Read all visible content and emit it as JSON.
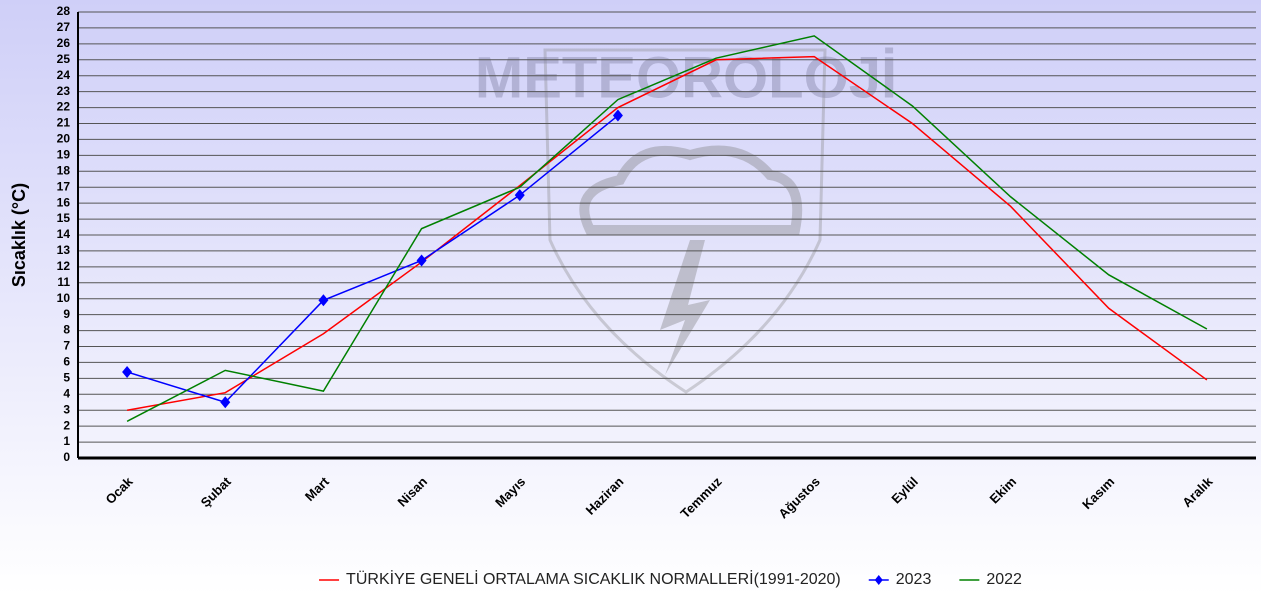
{
  "chart_data": {
    "type": "line",
    "watermark": "METEOROLOJİ",
    "ylabel": "Sıcaklık (°C)",
    "categories": [
      "Ocak",
      "Şubat",
      "Mart",
      "Nisan",
      "Mayıs",
      "Haziran",
      "Temmuz",
      "Ağustos",
      "Eylül",
      "Ekim",
      "Kasım",
      "Aralık"
    ],
    "series": [
      {
        "name": "TÜRKİYE GENELİ ORTALAMA SICAKLIK NORMALLERİ(1991-2020)",
        "color": "#ff0000",
        "marker": false,
        "values": [
          3.0,
          4.1,
          7.8,
          12.3,
          17.1,
          22.0,
          25.0,
          25.2,
          21.0,
          15.8,
          9.4,
          4.9
        ]
      },
      {
        "name": "2023",
        "color": "#0000ff",
        "marker": true,
        "values": [
          5.4,
          3.5,
          9.9,
          12.4,
          16.5,
          21.5,
          null,
          null,
          null,
          null,
          null,
          null
        ]
      },
      {
        "name": "2022",
        "color": "#008000",
        "marker": false,
        "values": [
          2.3,
          5.5,
          4.2,
          14.4,
          17.0,
          22.5,
          25.1,
          26.5,
          22.1,
          16.4,
          11.5,
          8.1
        ]
      }
    ],
    "ylim": [
      0,
      28
    ],
    "yticks": [
      0,
      1,
      2,
      3,
      4,
      5,
      6,
      7,
      8,
      9,
      10,
      11,
      12,
      13,
      14,
      15,
      16,
      17,
      18,
      19,
      20,
      21,
      22,
      23,
      24,
      25,
      26,
      27,
      28
    ],
    "grid": true,
    "legend": "bottom"
  }
}
